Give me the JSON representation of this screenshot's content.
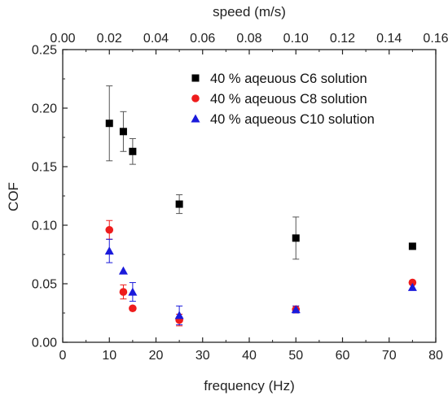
{
  "chart_data": {
    "type": "scatter",
    "xlabel": "frequency (Hz)",
    "ylabel": "COF",
    "x2label": "speed (m/s)",
    "xlim": [
      0,
      80
    ],
    "ylim": [
      0,
      0.25
    ],
    "x2lim": [
      0,
      0.16
    ],
    "x_ticks": [
      "0",
      "10",
      "20",
      "30",
      "40",
      "50",
      "60",
      "70",
      "80"
    ],
    "y_ticks": [
      "0.00",
      "0.05",
      "0.10",
      "0.15",
      "0.20",
      "0.25"
    ],
    "x2_ticks": [
      "0.00",
      "0.02",
      "0.04",
      "0.06",
      "0.08",
      "0.10",
      "0.12",
      "0.14",
      "0.16"
    ],
    "legend_position": "top-right",
    "grid": false,
    "series": [
      {
        "name": "40 % aqeuous C6 solution",
        "marker": "square",
        "color": "#000000",
        "points": [
          {
            "x": 10,
            "y": 0.187,
            "err": 0.032
          },
          {
            "x": 13,
            "y": 0.18,
            "err": 0.017
          },
          {
            "x": 15,
            "y": 0.163,
            "err": 0.011
          },
          {
            "x": 25,
            "y": 0.118,
            "err": 0.008
          },
          {
            "x": 50,
            "y": 0.089,
            "err": 0.018
          },
          {
            "x": 75,
            "y": 0.082,
            "err": 0
          }
        ]
      },
      {
        "name": "40 % aqeuous C8 solution",
        "marker": "circle",
        "color": "#ee1c1c",
        "points": [
          {
            "x": 10,
            "y": 0.096,
            "err": 0.008
          },
          {
            "x": 13,
            "y": 0.043,
            "err": 0.006
          },
          {
            "x": 15,
            "y": 0.029,
            "err": 0
          },
          {
            "x": 25,
            "y": 0.019,
            "err": 0.005
          },
          {
            "x": 50,
            "y": 0.028,
            "err": 0.003
          },
          {
            "x": 75,
            "y": 0.051,
            "err": 0
          }
        ]
      },
      {
        "name": "40 % aqueous C10 solution",
        "marker": "triangle",
        "color": "#1a1adb",
        "points": [
          {
            "x": 10,
            "y": 0.078,
            "err": 0.01
          },
          {
            "x": 13,
            "y": 0.061,
            "err": 0
          },
          {
            "x": 15,
            "y": 0.043,
            "err": 0.008
          },
          {
            "x": 25,
            "y": 0.023,
            "err": 0.008
          },
          {
            "x": 50,
            "y": 0.028,
            "err": 0.003
          },
          {
            "x": 75,
            "y": 0.047,
            "err": 0
          }
        ]
      }
    ]
  }
}
